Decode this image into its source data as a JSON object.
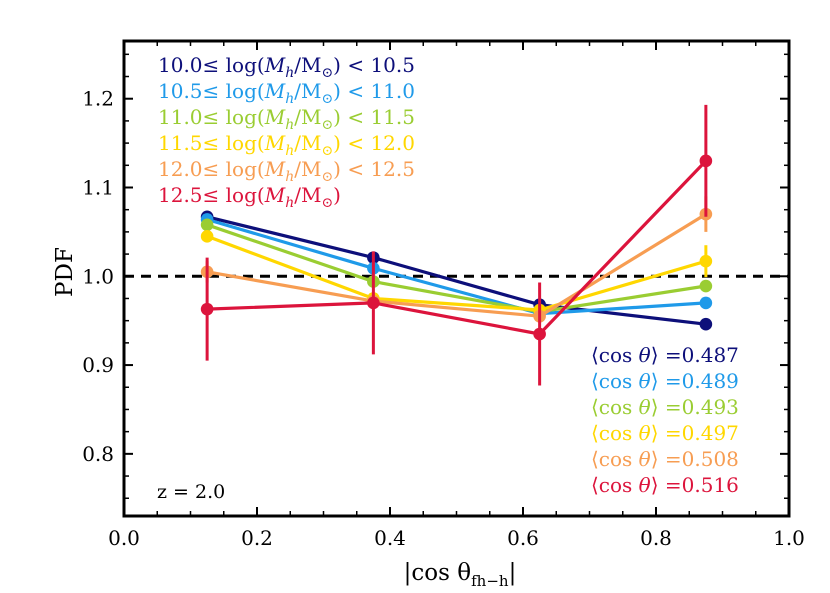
{
  "chart_data": {
    "type": "line",
    "xlabel": "|cos θ_{fh−h}|",
    "ylabel": "PDF",
    "xlim": [
      0.0,
      1.0
    ],
    "ylim": [
      0.73,
      1.265
    ],
    "xticks": [
      0.0,
      0.2,
      0.4,
      0.6,
      0.8,
      1.0
    ],
    "xtick_labels": [
      "0.0",
      "0.2",
      "0.4",
      "0.6",
      "0.8",
      "1.0"
    ],
    "yticks": [
      0.8,
      0.9,
      1.0,
      1.1,
      1.2
    ],
    "ytick_labels": [
      "0.8",
      "0.9",
      "1.0",
      "1.1",
      "1.2"
    ],
    "reference_line": {
      "y": 1.0,
      "style": "dashed",
      "color": "#000000"
    },
    "annotation": "z = 2.0",
    "x": [
      0.125,
      0.375,
      0.625,
      0.875
    ],
    "series": [
      {
        "name": "10.0≤ log(M_h/M_⊙) < 10.5",
        "label_prefix": "10.0≤ log(",
        "label_var": "M",
        "label_sub": "h",
        "label_suffix": "/M",
        "label_odot": "⊙",
        "label_tail": ") < 10.5",
        "color": "#0d0f7a",
        "values": [
          1.067,
          1.021,
          0.968,
          0.946
        ],
        "yerr": [
          0.0,
          0.0,
          0.0,
          0.0
        ],
        "mean_prefix": "⟨cos ",
        "mean_theta": "θ",
        "mean_value": "⟩ =0.487"
      },
      {
        "name": "10.5≤ log(M_h/M_⊙) < 11.0",
        "label_prefix": "10.5≤ log(",
        "label_var": "M",
        "label_sub": "h",
        "label_suffix": "/M",
        "label_odot": "⊙",
        "label_tail": ") < 11.0",
        "color": "#1f9ae9",
        "values": [
          1.064,
          1.009,
          0.958,
          0.97
        ],
        "yerr": [
          0.0,
          0.0,
          0.0,
          0.0
        ],
        "mean_prefix": "⟨cos ",
        "mean_theta": "θ",
        "mean_value": "⟩ =0.489"
      },
      {
        "name": "11.0≤ log(M_h/M_⊙) < 11.5",
        "label_prefix": "11.0≤ log(",
        "label_var": "M",
        "label_sub": "h",
        "label_suffix": "/M",
        "label_odot": "⊙",
        "label_tail": ") < 11.5",
        "color": "#9acd32",
        "values": [
          1.058,
          0.994,
          0.96,
          0.989
        ],
        "yerr": [
          0.0,
          0.0,
          0.0,
          0.0
        ],
        "mean_prefix": "⟨cos ",
        "mean_theta": "θ",
        "mean_value": "⟩ =0.493"
      },
      {
        "name": "11.5≤ log(M_h/M_⊙) < 12.0",
        "label_prefix": "11.5≤ log(",
        "label_var": "M",
        "label_sub": "h",
        "label_suffix": "/M",
        "label_odot": "⊙",
        "label_tail": ") < 12.0",
        "color": "#ffd700",
        "values": [
          1.045,
          0.975,
          0.962,
          1.017
        ],
        "yerr": [
          0.0,
          0.0,
          0.0,
          0.018
        ],
        "mean_prefix": "⟨cos ",
        "mean_theta": "θ",
        "mean_value": "⟩ =0.497"
      },
      {
        "name": "12.0≤ log(M_h/M_⊙) < 12.5",
        "label_prefix": "12.0≤ log(",
        "label_var": "M",
        "label_sub": "h",
        "label_suffix": "/M",
        "label_odot": "⊙",
        "label_tail": ") < 12.5",
        "color": "#f79d52",
        "values": [
          1.005,
          0.972,
          0.955,
          1.07
        ],
        "yerr": [
          0.012,
          0.0,
          0.0,
          0.02
        ],
        "mean_prefix": "⟨cos ",
        "mean_theta": "θ",
        "mean_value": "⟩ =0.508"
      },
      {
        "name": "12.5≤ log(M_h/M_⊙)",
        "label_prefix": "12.5≤ log(",
        "label_var": "M",
        "label_sub": "h",
        "label_suffix": "/M",
        "label_odot": "⊙",
        "label_tail": ")",
        "color": "#dc143c",
        "values": [
          0.963,
          0.97,
          0.935,
          1.13
        ],
        "yerr": [
          0.058,
          0.058,
          0.058,
          0.063
        ],
        "mean_prefix": "⟨cos ",
        "mean_theta": "θ",
        "mean_value": "⟩ =0.516"
      }
    ]
  }
}
